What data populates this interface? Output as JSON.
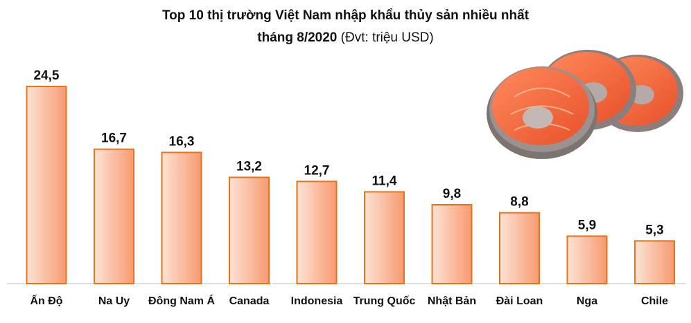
{
  "header": {
    "title_line1": "Top 10 thị trường Việt Nam nhập khẩu thủy sản nhiều nhất",
    "title_line2_bold": "tháng 8/2020",
    "title_line2_rest": " (Đvt: triệu USD)"
  },
  "chart_data": {
    "type": "bar",
    "title": "Top 10 thị trường Việt Nam nhập khẩu thủy sản nhiều nhất tháng 8/2020 (Đvt: triệu USD)",
    "categories": [
      "Ấn Độ",
      "Na Uy",
      "Đông Nam Á",
      "Canada",
      "Indonesia",
      "Trung Quốc",
      "Nhật Bản",
      "Đài Loan",
      "Nga",
      "Chile"
    ],
    "values": [
      24.5,
      16.7,
      16.3,
      13.2,
      12.7,
      11.4,
      9.8,
      8.8,
      5.9,
      5.3
    ],
    "value_labels": [
      "24,5",
      "16,7",
      "16,3",
      "13,2",
      "12,7",
      "11,4",
      "9,8",
      "8,8",
      "5,9",
      "5,3"
    ],
    "unit": "triệu USD",
    "ylim": [
      0,
      24.5
    ],
    "grid": false,
    "legend": "none",
    "colors": {
      "bar_fill_light": "#fde3d6",
      "bar_fill_dark": "#f79a70",
      "bar_border": "#e8731a",
      "axis": "#bfbfbf"
    }
  },
  "decoration": {
    "image": "salmon-steaks-icon"
  }
}
